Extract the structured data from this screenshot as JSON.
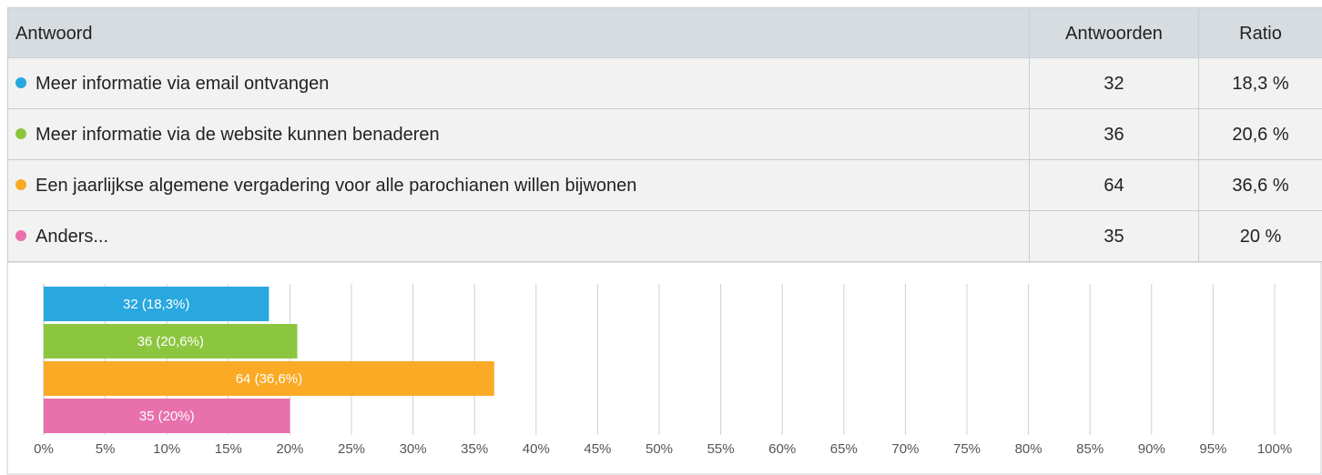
{
  "table": {
    "header": [
      "Antwoord",
      "Antwoorden",
      "Ratio"
    ],
    "rows": [
      {
        "label": "Meer informatie via email ontvangen",
        "count": 32,
        "ratio": "18,3 %"
      },
      {
        "label": "Meer informatie via de website kunnen benaderen",
        "count": 36,
        "ratio": "20,6 %"
      },
      {
        "label": "Een jaarlijkse algemene vergadering voor alle parochianen willen bijwonen",
        "count": 64,
        "ratio": "36,6 %"
      },
      {
        "label": "Anders...",
        "count": 35,
        "ratio": "20 %"
      }
    ]
  },
  "chart_data": {
    "type": "hbar",
    "categories": [
      "Meer informatie via email ontvangen",
      "Meer informatie via de website kunnen benaderen",
      "Een jaarlijkse algemene vergadering voor alle parochianen willen bijwonen",
      "Anders..."
    ],
    "values": [
      18.3,
      20.6,
      36.6,
      20
    ],
    "value_labels": [
      "32 (18,3%)",
      "36 (20,6%)",
      "64 (36,6%)",
      "35 (20%)"
    ],
    "colors": [
      "#29a8e0",
      "#8cc63f",
      "#fbaa26",
      "#e870ad"
    ],
    "xlim": [
      0,
      100
    ],
    "xticks": [
      {
        "value": 0,
        "label": "0%"
      },
      {
        "value": 5,
        "label": "5%"
      },
      {
        "value": 10,
        "label": "10%"
      },
      {
        "value": 15,
        "label": "15%"
      },
      {
        "value": 20,
        "label": "20%"
      },
      {
        "value": 25,
        "label": "25%"
      },
      {
        "value": 30,
        "label": "30%"
      },
      {
        "value": 35,
        "label": "35%"
      },
      {
        "value": 40,
        "label": "40%"
      },
      {
        "value": 45,
        "label": "45%"
      },
      {
        "value": 50,
        "label": "50%"
      },
      {
        "value": 55,
        "label": "55%"
      },
      {
        "value": 60,
        "label": "60%"
      },
      {
        "value": 65,
        "label": "65%"
      },
      {
        "value": 70,
        "label": "70%"
      },
      {
        "value": 75,
        "label": "75%"
      },
      {
        "value": 80,
        "label": "80%"
      },
      {
        "value": 85,
        "label": "85%"
      },
      {
        "value": 90,
        "label": "90%"
      },
      {
        "value": 95,
        "label": "95%"
      },
      {
        "value": 100,
        "label": "100%"
      }
    ],
    "grid": true
  }
}
